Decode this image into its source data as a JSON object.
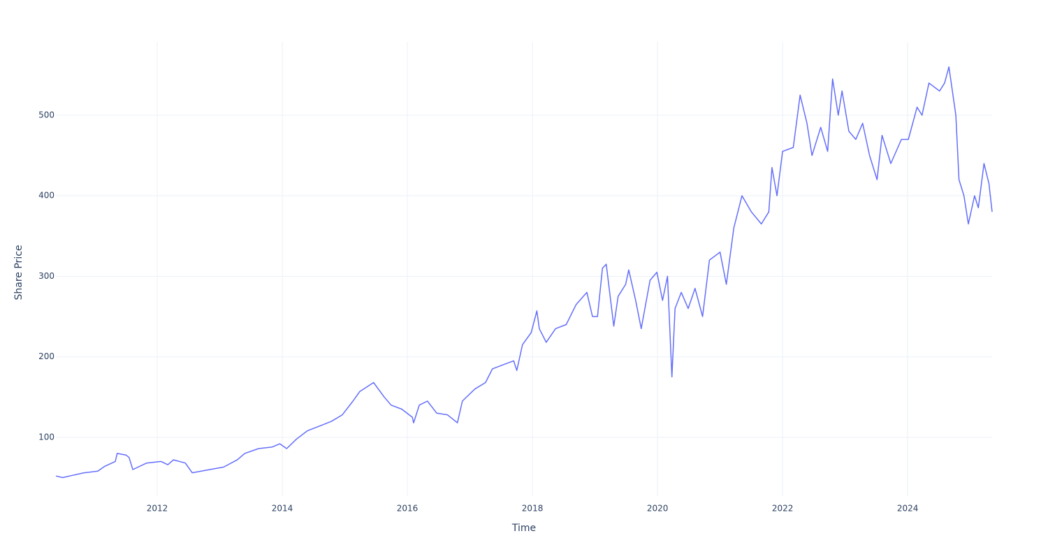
{
  "chart_data": {
    "type": "line",
    "xlabel": "Time",
    "ylabel": "Share Price",
    "x": [
      2010.38,
      2010.49,
      2010.6,
      2010.83,
      2011.05,
      2011.16,
      2011.33,
      2011.36,
      2011.5,
      2011.55,
      2011.61,
      2011.83,
      2012.06,
      2012.17,
      2012.26,
      2012.45,
      2012.56,
      2012.84,
      2013.06,
      2013.28,
      2013.4,
      2013.62,
      2013.84,
      2013.96,
      2014.07,
      2014.23,
      2014.4,
      2014.63,
      2014.79,
      2014.96,
      2015.13,
      2015.24,
      2015.46,
      2015.63,
      2015.74,
      2015.91,
      2016.08,
      2016.1,
      2016.19,
      2016.32,
      2016.47,
      2016.64,
      2016.8,
      2016.88,
      2017.08,
      2017.25,
      2017.36,
      2017.53,
      2017.7,
      2017.75,
      2017.84,
      2017.98,
      2018.07,
      2018.11,
      2018.22,
      2018.37,
      2018.54,
      2018.7,
      2018.87,
      2018.96,
      2019.04,
      2019.12,
      2019.18,
      2019.3,
      2019.37,
      2019.49,
      2019.54,
      2019.65,
      2019.74,
      2019.88,
      2019.99,
      2020.08,
      2020.16,
      2020.23,
      2020.28,
      2020.38,
      2020.49,
      2020.6,
      2020.72,
      2020.83,
      2021.0,
      2021.1,
      2021.22,
      2021.35,
      2021.5,
      2021.66,
      2021.78,
      2021.83,
      2021.91,
      2022.0,
      2022.17,
      2022.28,
      2022.39,
      2022.47,
      2022.61,
      2022.72,
      2022.8,
      2022.89,
      2022.95,
      2023.06,
      2023.17,
      2023.28,
      2023.39,
      2023.51,
      2023.59,
      2023.73,
      2023.9,
      2024.01,
      2024.15,
      2024.23,
      2024.34,
      2024.51,
      2024.59,
      2024.66,
      2024.77,
      2024.82,
      2024.9,
      2024.97,
      2025.07,
      2025.13,
      2025.22,
      2025.3,
      2025.35
    ],
    "values": [
      52,
      50,
      52,
      56,
      58,
      64,
      70,
      80,
      78,
      75,
      60,
      68,
      70,
      66,
      72,
      68,
      56,
      60,
      63,
      72,
      80,
      86,
      88,
      92,
      86,
      98,
      108,
      115,
      120,
      128,
      145,
      157,
      168,
      150,
      140,
      135,
      125,
      118,
      140,
      145,
      130,
      128,
      118,
      145,
      160,
      168,
      185,
      190,
      195,
      183,
      215,
      230,
      257,
      235,
      218,
      235,
      240,
      265,
      280,
      250,
      250,
      310,
      315,
      238,
      275,
      290,
      308,
      270,
      235,
      295,
      305,
      270,
      300,
      175,
      260,
      280,
      260,
      285,
      250,
      320,
      330,
      290,
      360,
      400,
      380,
      365,
      380,
      435,
      400,
      455,
      460,
      525,
      490,
      450,
      485,
      455,
      545,
      500,
      530,
      480,
      470,
      490,
      450,
      420,
      475,
      440,
      470,
      470,
      510,
      500,
      540,
      530,
      540,
      560,
      500,
      420,
      400,
      365,
      400,
      385,
      440,
      415,
      380
    ],
    "color": "#636efa",
    "xlim": [
      2010.38,
      2025.35
    ],
    "xticks": [
      2012,
      2014,
      2016,
      2018,
      2020,
      2022,
      2024
    ],
    "ylim": [
      27,
      591
    ],
    "yticks": [
      100,
      200,
      300,
      400,
      500
    ],
    "grid": true
  }
}
